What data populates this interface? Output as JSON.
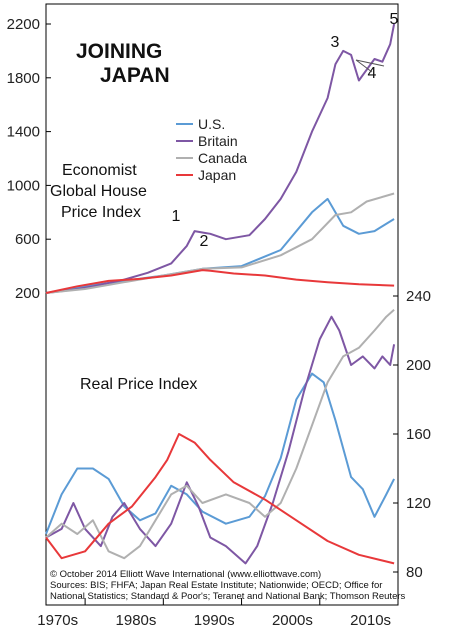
{
  "chart_data": [
    {
      "type": "line",
      "title": "JOINING JAPAN",
      "subtitle": "Economist Global House Price Index",
      "ylim": [
        200,
        2300
      ],
      "y_ticks": [
        200,
        600,
        1000,
        1400,
        1800,
        2200
      ],
      "legend": [
        "U.S.",
        "Britain",
        "Canada",
        "Japan"
      ],
      "legend_placement": "top-center",
      "grid": false,
      "series": [
        {
          "name": "U.S.",
          "color": "#5b9bd5",
          "x": [
            1970,
            1975,
            1980,
            1985,
            1990,
            1995,
            2000,
            2004,
            2006,
            2008,
            2010,
            2012,
            2014.5
          ],
          "values": [
            200,
            250,
            290,
            330,
            380,
            400,
            520,
            800,
            900,
            700,
            640,
            660,
            750
          ]
        },
        {
          "name": "Britain",
          "color": "#7e57a4",
          "x": [
            1970,
            1973,
            1976,
            1980,
            1983,
            1986,
            1988,
            1989,
            1990,
            1991,
            1993,
            1996,
            1998,
            2000,
            2002,
            2004,
            2006,
            2007,
            2008,
            2009,
            2010,
            2011,
            2012,
            2013,
            2014,
            2014.5
          ],
          "values": [
            200,
            220,
            250,
            300,
            350,
            420,
            550,
            660,
            650,
            640,
            600,
            630,
            750,
            900,
            1100,
            1400,
            1650,
            1900,
            2000,
            1970,
            1780,
            1860,
            1940,
            1920,
            2050,
            2200
          ]
        },
        {
          "name": "Canada",
          "color": "#b0b0b0",
          "x": [
            1970,
            1975,
            1980,
            1985,
            1990,
            1995,
            2000,
            2004,
            2007,
            2009,
            2011,
            2014.5
          ],
          "values": [
            200,
            230,
            280,
            330,
            380,
            390,
            480,
            600,
            780,
            800,
            880,
            940
          ]
        },
        {
          "name": "Japan",
          "color": "#e8383a",
          "x": [
            1970,
            1974,
            1978,
            1982,
            1986,
            1990,
            1991,
            1994,
            1998,
            2002,
            2006,
            2010,
            2014.5
          ],
          "values": [
            200,
            250,
            290,
            305,
            330,
            370,
            365,
            345,
            330,
            300,
            280,
            265,
            255
          ]
        }
      ],
      "annotations": [
        "1",
        "2",
        "3",
        "4",
        "5"
      ]
    },
    {
      "type": "line",
      "subtitle": "Real Price Index",
      "ylim": [
        75,
        245
      ],
      "y_ticks": [
        80,
        120,
        160,
        200,
        240
      ],
      "x_ticks": [
        "1970s",
        "1980s",
        "1990s",
        "2000s",
        "2010s"
      ],
      "xlim": [
        1970,
        2015
      ],
      "grid": false,
      "series": [
        {
          "name": "U.S.",
          "color": "#5b9bd5",
          "x": [
            1970,
            1972,
            1974,
            1976,
            1978,
            1980,
            1982,
            1984,
            1986,
            1988,
            1990,
            1993,
            1996,
            1998,
            2000,
            2002,
            2004,
            2005.5,
            2007,
            2009,
            2010.5,
            2012,
            2013.5,
            2014.5
          ],
          "values": [
            102,
            125,
            140,
            140,
            134,
            118,
            110,
            114,
            130,
            125,
            115,
            108,
            112,
            124,
            146,
            180,
            195,
            190,
            168,
            135,
            128,
            112,
            125,
            134
          ]
        },
        {
          "name": "Britain",
          "color": "#7e57a4",
          "x": [
            1970,
            1972,
            1973.5,
            1975,
            1977,
            1978.5,
            1980,
            1982,
            1984,
            1986,
            1988,
            1989.5,
            1991,
            1993,
            1995.5,
            1997,
            1999,
            2001,
            2003,
            2005,
            2006.5,
            2007.5,
            2009,
            2010.5,
            2012,
            2013,
            2014,
            2014.5
          ],
          "values": [
            100,
            105,
            120,
            105,
            95,
            112,
            120,
            105,
            95,
            108,
            132,
            118,
            100,
            95,
            85,
            95,
            120,
            150,
            185,
            215,
            228,
            220,
            200,
            205,
            198,
            205,
            200,
            212
          ]
        },
        {
          "name": "Canada",
          "color": "#b0b0b0",
          "x": [
            1970,
            1972,
            1974,
            1976,
            1978,
            1980,
            1982,
            1984,
            1986,
            1988,
            1990,
            1993,
            1996,
            1998,
            2000,
            2002,
            2004,
            2006,
            2008,
            2010,
            2012,
            2013.5,
            2014.5
          ],
          "values": [
            100,
            108,
            102,
            110,
            92,
            88,
            95,
            110,
            125,
            130,
            120,
            125,
            120,
            112,
            120,
            140,
            165,
            190,
            205,
            210,
            220,
            228,
            232
          ]
        },
        {
          "name": "Japan",
          "color": "#e8383a",
          "x": [
            1970,
            1972,
            1975,
            1978,
            1981,
            1984,
            1985.5,
            1987,
            1989,
            1991,
            1994,
            1998,
            2002,
            2006,
            2010,
            2014.5
          ],
          "values": [
            100,
            88,
            92,
            108,
            118,
            135,
            145,
            160,
            155,
            145,
            132,
            122,
            110,
            98,
            90,
            85
          ]
        }
      ]
    }
  ],
  "credits": {
    "line1": "© October 2014 Elliott Wave International (www.elliottwave.com)",
    "line2": "Sources: BIS; FHFA; Japan Real Estate Institute; Nationwide; OECD; Office for",
    "line3": "National Statistics; Standard & Poor's; Teranet and National Bank; Thomson Reuters"
  }
}
